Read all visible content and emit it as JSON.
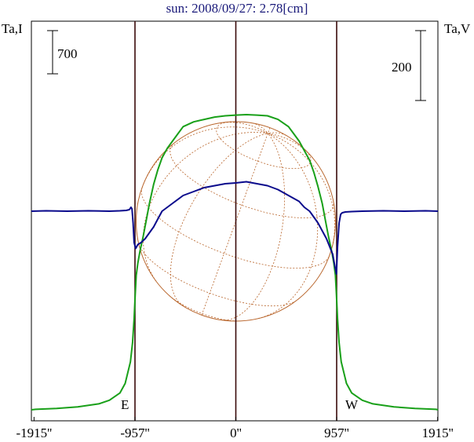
{
  "chart_data": {
    "type": "line",
    "title": "sun: 2008/09/27: 2.78[cm]",
    "left_axis_label": "Ta,I",
    "right_axis_label": "Ta,V",
    "left_scale_bar": "700",
    "right_scale_bar": "200",
    "limb_markers": {
      "east": "E",
      "west": "W"
    },
    "x_ticks": [
      {
        "x": -1915,
        "label": "-1915''"
      },
      {
        "x": -957,
        "label": "-957''"
      },
      {
        "x": 0,
        "label": "0''"
      },
      {
        "x": 957,
        "label": "957''"
      },
      {
        "x": 1915,
        "label": "1915''"
      }
    ],
    "xlim": [
      -1985,
      1985
    ],
    "vertical_lines_at": [
      -957,
      0,
      957
    ],
    "grid": false,
    "legend": "none",
    "series": [
      {
        "axis": "left",
        "color": "#19a019",
        "x": [
          -1985,
          -1900,
          -1700,
          -1500,
          -1300,
          -1200,
          -1100,
          -1050,
          -1000,
          -980,
          -965,
          -955,
          -945,
          -930,
          -910,
          -880,
          -850,
          -820,
          -780,
          -740,
          -700,
          -650,
          -600,
          -550,
          -500,
          -400,
          -300,
          -200,
          -100,
          0,
          100,
          200,
          300,
          400,
          500,
          550,
          600,
          650,
          700,
          740,
          780,
          820,
          850,
          880,
          910,
          930,
          945,
          955,
          965,
          980,
          1000,
          1050,
          1100,
          1200,
          1300,
          1500,
          1700,
          1900,
          1985
        ],
        "y": [
          0,
          2,
          6,
          12,
          25,
          40,
          70,
          110,
          200,
          280,
          380,
          480,
          560,
          610,
          660,
          720,
          790,
          860,
          940,
          1000,
          1050,
          1090,
          1120,
          1150,
          1180,
          1200,
          1210,
          1220,
          1225,
          1228,
          1230,
          1228,
          1225,
          1210,
          1180,
          1150,
          1120,
          1080,
          1040,
          990,
          930,
          860,
          790,
          720,
          660,
          610,
          560,
          480,
          380,
          280,
          200,
          110,
          70,
          40,
          25,
          12,
          6,
          2,
          0
        ]
      },
      {
        "axis": "right",
        "color": "#0a0a8c",
        "x": [
          -1985,
          -1800,
          -1600,
          -1400,
          -1200,
          -1100,
          -1040,
          -1010,
          -995,
          -985,
          -975,
          -965,
          -950,
          -930,
          -900,
          -860,
          -820,
          -780,
          -740,
          -700,
          -650,
          -600,
          -500,
          -400,
          -300,
          -200,
          -100,
          0,
          100,
          200,
          300,
          400,
          500,
          600,
          650,
          700,
          740,
          780,
          820,
          860,
          890,
          920,
          940,
          955,
          965,
          980,
          995,
          1010,
          1040,
          1100,
          1200,
          1400,
          1600,
          1800,
          1985
        ],
        "y": [
          0,
          1,
          0,
          1,
          0,
          1,
          2,
          4,
          10,
          6,
          -30,
          -80,
          -95,
          -85,
          -80,
          -70,
          -55,
          -40,
          -20,
          0,
          10,
          20,
          40,
          50,
          60,
          65,
          70,
          72,
          75,
          70,
          65,
          55,
          40,
          25,
          10,
          0,
          -15,
          -30,
          -50,
          -70,
          -90,
          -110,
          -140,
          -160,
          -90,
          -30,
          -8,
          -4,
          -2,
          -1,
          0,
          1,
          0,
          1,
          0
        ]
      }
    ]
  }
}
